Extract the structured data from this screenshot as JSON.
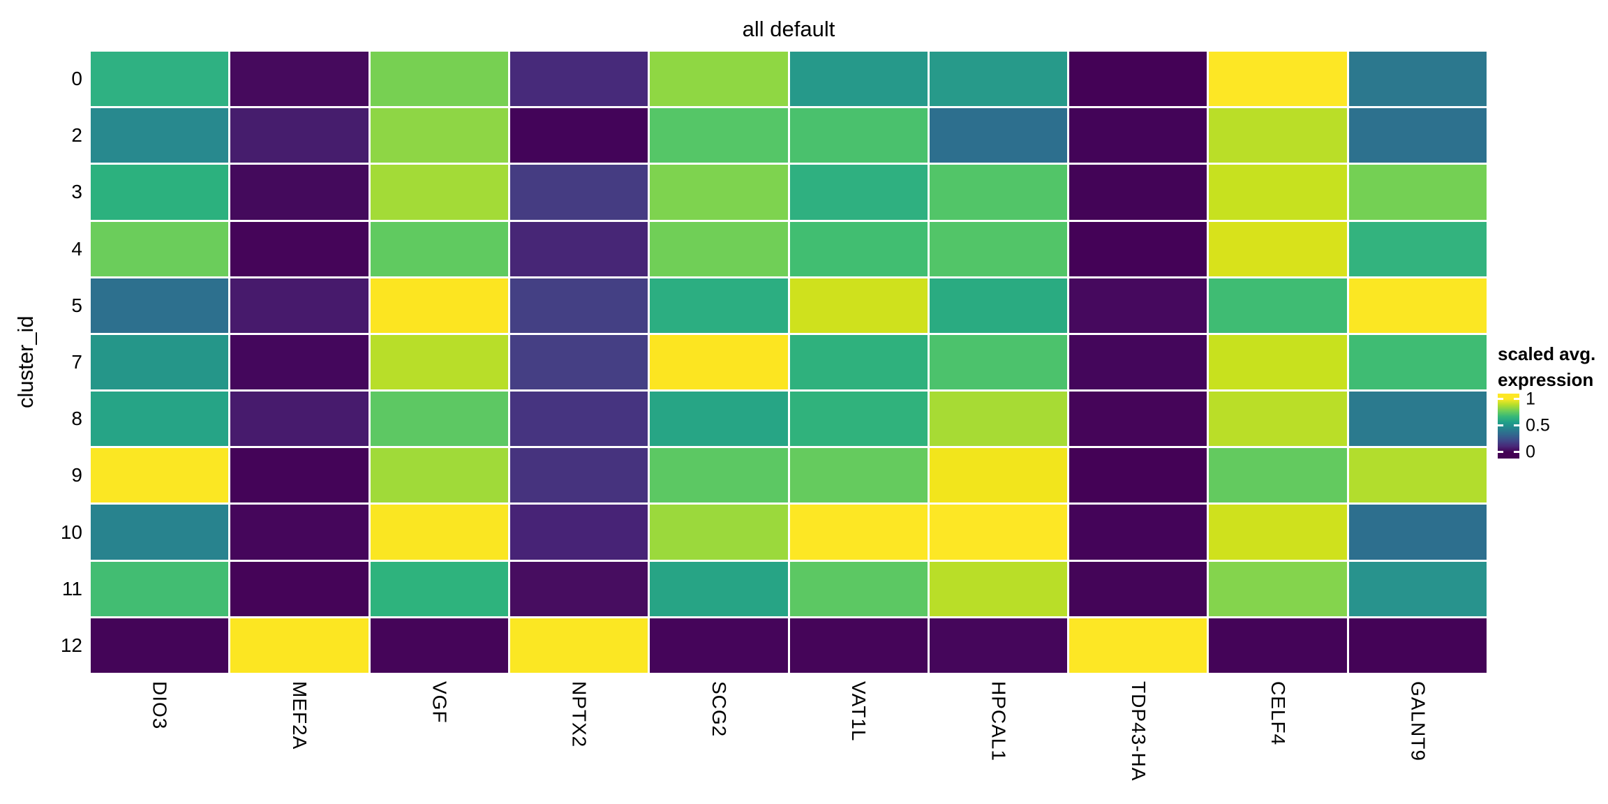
{
  "figure": {
    "background": "#ffffff",
    "text_color": "#000000",
    "cell_gap_color": "#ffffff"
  },
  "chart_data": {
    "type": "heatmap",
    "title": "all default",
    "xlabel": "",
    "ylabel": "cluster_id",
    "grid": "off",
    "colormap": "viridis",
    "colormap_stops": [
      "#440154",
      "#482878",
      "#3e4a89",
      "#31688e",
      "#26828e",
      "#1f9e89",
      "#35b779",
      "#6ece58",
      "#b5de2b",
      "#fde725"
    ],
    "rows": [
      "0",
      "2",
      "3",
      "4",
      "5",
      "7",
      "8",
      "9",
      "10",
      "11",
      "12"
    ],
    "columns": [
      "DIO3",
      "MEF2A",
      "VGF",
      "NPTX2",
      "SCG2",
      "VAT1L",
      "HPCAL1",
      "TDP43-HA",
      "CELF4",
      "GALNT9"
    ],
    "values": [
      [
        0.57,
        0.03,
        0.72,
        0.1,
        0.75,
        0.48,
        0.48,
        0.0,
        1.0,
        0.35
      ],
      [
        0.42,
        0.07,
        0.75,
        0.01,
        0.65,
        0.63,
        0.32,
        0.0,
        0.81,
        0.33
      ],
      [
        0.57,
        0.02,
        0.78,
        0.14,
        0.73,
        0.57,
        0.65,
        0.0,
        0.84,
        0.71
      ],
      [
        0.69,
        0.01,
        0.67,
        0.09,
        0.7,
        0.62,
        0.65,
        0.0,
        0.88,
        0.58
      ],
      [
        0.32,
        0.06,
        0.99,
        0.16,
        0.56,
        0.86,
        0.55,
        0.02,
        0.62,
        0.99
      ],
      [
        0.47,
        0.01,
        0.81,
        0.16,
        0.99,
        0.57,
        0.64,
        0.01,
        0.84,
        0.62
      ],
      [
        0.52,
        0.07,
        0.66,
        0.13,
        0.53,
        0.58,
        0.79,
        0.01,
        0.81,
        0.36
      ],
      [
        0.99,
        0.01,
        0.78,
        0.13,
        0.66,
        0.68,
        0.96,
        0.0,
        0.68,
        0.8
      ],
      [
        0.4,
        0.01,
        0.98,
        0.09,
        0.77,
        1.0,
        1.0,
        0.01,
        0.86,
        0.32
      ],
      [
        0.62,
        0.01,
        0.58,
        0.03,
        0.52,
        0.66,
        0.81,
        0.01,
        0.73,
        0.46
      ],
      [
        0.01,
        0.99,
        0.01,
        0.99,
        0.01,
        0.01,
        0.01,
        1.0,
        0.01,
        0.0
      ]
    ],
    "cell_colors": [
      [
        "#2fb182",
        "#460a5d",
        "#77d052",
        "#472a7a",
        "#8fd743",
        "#26998a",
        "#279a8a",
        "#440256",
        "#fde725",
        "#2c788e"
      ],
      [
        "#28898e",
        "#461d6d",
        "#8ed645",
        "#430459",
        "#55c667",
        "#4ac16d",
        "#2d6f8e",
        "#430458",
        "#bade28",
        "#2d718e"
      ],
      [
        "#2cb17e",
        "#440a5c",
        "#a3db37",
        "#453c82",
        "#7ed34f",
        "#2fb080",
        "#52c568",
        "#430457",
        "#c7e11f",
        "#74d054"
      ],
      [
        "#6bcd5b",
        "#450559",
        "#60ca60",
        "#472676",
        "#70cf57",
        "#41be71",
        "#52c568",
        "#440257",
        "#d8e21b",
        "#33b37e"
      ],
      [
        "#2d708e",
        "#471a6c",
        "#fce521",
        "#444084",
        "#2cae81",
        "#cfe11d",
        "#2aab81",
        "#46095e",
        "#3fbc73",
        "#fbe723"
      ],
      [
        "#259689",
        "#44075c",
        "#b8de29",
        "#453f84",
        "#fce521",
        "#2fb17d",
        "#4cc26c",
        "#44065b",
        "#c8e11e",
        "#3fbc73"
      ],
      [
        "#26a486",
        "#471b6d",
        "#5dc863",
        "#463480",
        "#27a585",
        "#30b27c",
        "#a7db34",
        "#450559",
        "#bade28",
        "#2b7a8e"
      ],
      [
        "#fbe723",
        "#440458",
        "#a0da39",
        "#46337e",
        "#5cc863",
        "#65cb5e",
        "#f2e51c",
        "#440256",
        "#63ca5f",
        "#b2dd2d"
      ],
      [
        "#28838e",
        "#45065b",
        "#fae622",
        "#472376",
        "#9bd93c",
        "#fde724",
        "#fde725",
        "#440459",
        "#cfe11d",
        "#2d6f8e"
      ],
      [
        "#42bd72",
        "#450458",
        "#2eb37d",
        "#470d60",
        "#27a485",
        "#5cc863",
        "#b9de28",
        "#440558",
        "#84d44d",
        "#28938d"
      ],
      [
        "#440558",
        "#fce622",
        "#450559",
        "#fbe723",
        "#45055a",
        "#450559",
        "#45065b",
        "#fde725",
        "#440458",
        "#440357"
      ]
    ],
    "legend": {
      "title_line1": "scaled avg.",
      "title_line2": "expression",
      "position": "right",
      "ticks": [
        {
          "label": "1",
          "value": 1.0
        },
        {
          "label": "0.5",
          "value": 0.5
        },
        {
          "label": "0",
          "value": 0.0
        }
      ]
    }
  }
}
